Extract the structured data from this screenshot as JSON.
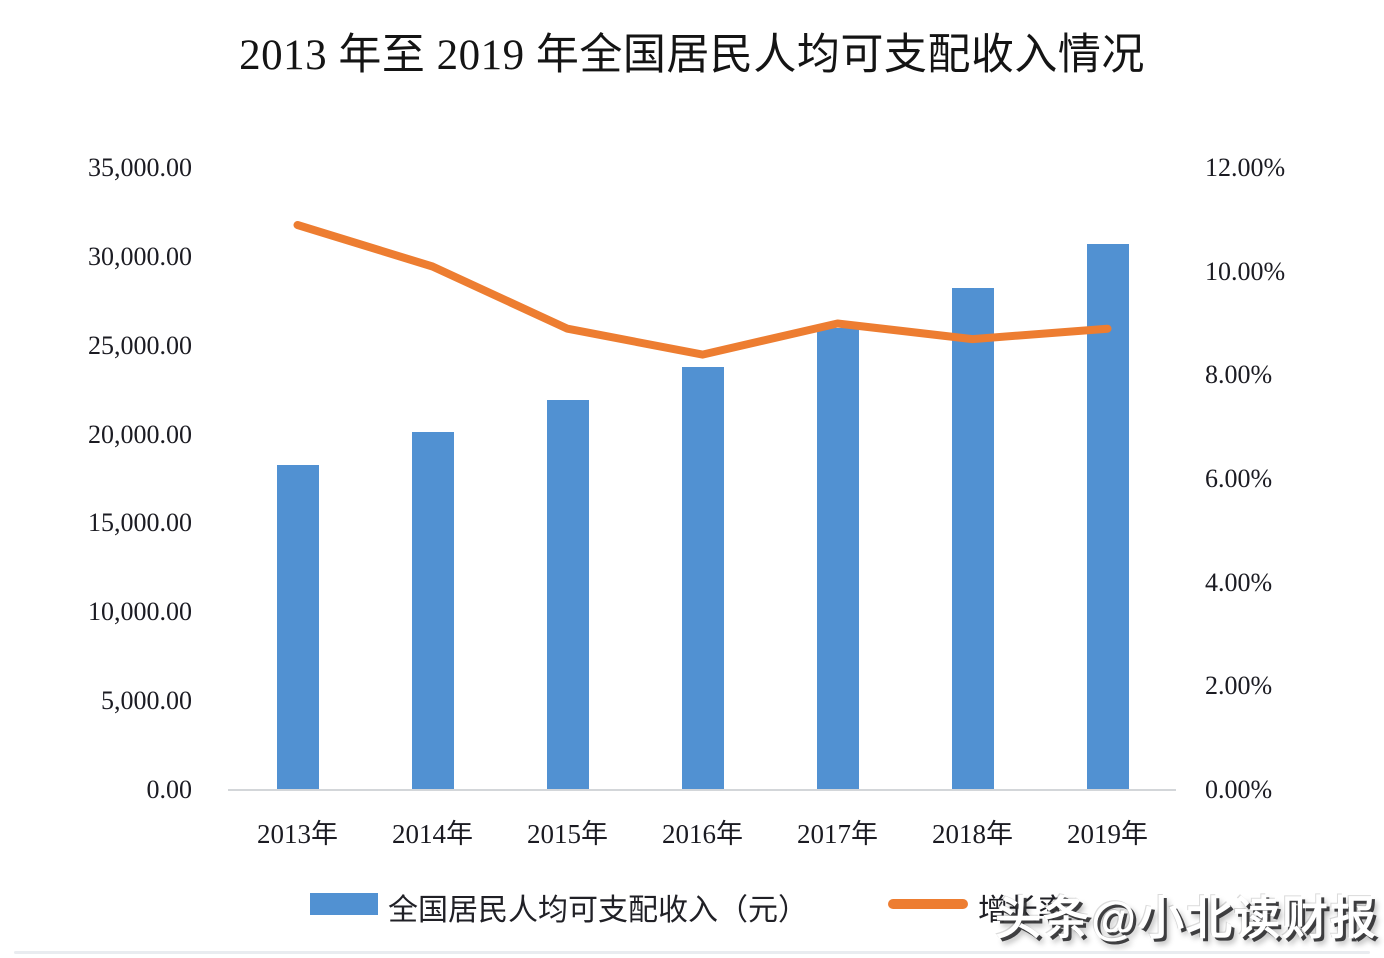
{
  "title": "2013 年至 2019 年全国居民人均可支配收入情况",
  "watermark": "头条@小北读财报",
  "colors": {
    "bar": "#5191D2",
    "line": "#ED7D31",
    "axis_text": "#1b1b22",
    "baseline": "#d3d6d9"
  },
  "chart_data": {
    "type": "bar",
    "subtype": "bar+line dual axis",
    "title": "2013 年至 2019 年全国居民人均可支配收入情况",
    "categories": [
      "2013年",
      "2014年",
      "2015年",
      "2016年",
      "2017年",
      "2018年",
      "2019年"
    ],
    "series": [
      {
        "name": "全国居民人均可支配收入（元）",
        "type": "bar",
        "axis": "left",
        "color": "#5191D2",
        "values": [
          18311,
          20167,
          21966,
          23821,
          25974,
          28228,
          30733
        ]
      },
      {
        "name": "增长率",
        "type": "line",
        "axis": "right",
        "color": "#ED7D31",
        "values": [
          10.9,
          10.1,
          8.9,
          8.4,
          9.0,
          8.7,
          8.9
        ]
      }
    ],
    "left_axis": {
      "min": 0,
      "max": 35000,
      "step": 5000,
      "tick_labels": [
        "0.00",
        "5,000.00",
        "10,000.00",
        "15,000.00",
        "20,000.00",
        "25,000.00",
        "30,000.00",
        "35,000.00"
      ]
    },
    "right_axis": {
      "min": 0,
      "max": 12,
      "step": 2,
      "tick_labels": [
        "0.00%",
        "2.00%",
        "4.00%",
        "6.00%",
        "8.00%",
        "10.00%",
        "12.00%"
      ]
    },
    "grid": false,
    "legend_position": "bottom"
  },
  "legend": {
    "bar_label": "全国居民人均可支配收入（元）",
    "line_label": "增长率"
  }
}
